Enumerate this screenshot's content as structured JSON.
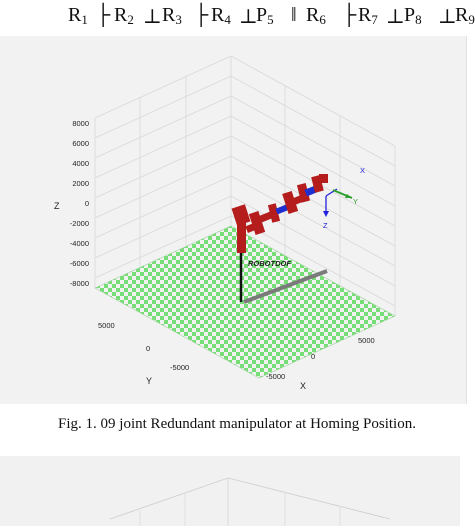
{
  "notation": {
    "r1": "R",
    "r1_sub": "1",
    "joint_a": "├",
    "r2": "R",
    "r2_sub": "2",
    "joint_b": "⊥",
    "r3": "R",
    "r3_sub": "3",
    "joint_c": "├",
    "r4": "R",
    "r4_sub": "4",
    "joint_d": "⊥",
    "p5": "P",
    "p5_sub": "5",
    "joint_e": "‖",
    "r6": "R",
    "r6_sub": "6",
    "joint_f": "├",
    "r7": "R",
    "r7_sub": "7",
    "joint_g": "⊥",
    "p8": "P",
    "p8_sub": "8",
    "joint_h": "⊥",
    "r9": "R",
    "r9_sub": "9"
  },
  "plot": {
    "z_ticks": [
      "8000",
      "6000",
      "4000",
      "2000",
      "0",
      "-2000",
      "-4000",
      "-6000",
      "-8000"
    ],
    "z_label": "Z",
    "y_ticks": [
      "5000",
      "0",
      "-5000"
    ],
    "y_label": "Y",
    "x_ticks": [
      "5000",
      "0",
      "-5000"
    ],
    "x_label": "X",
    "robot_label": "ROBOTDOF",
    "frame_x": "X",
    "frame_y": "Y",
    "frame_z": "Z",
    "colors": {
      "background": "#f2f2f2",
      "floor_a": "#77dd77",
      "floor_b": "#f2f2f2",
      "link_red": "#b51d1d",
      "link_blue": "#1f2fcf",
      "base_pole": "#111111",
      "rail": "#7a7a7a",
      "frame_green": "#2e9e2e",
      "frame_blue": "#2222dd"
    }
  },
  "caption": "Fig. 1.   09 joint Redundant manipulator at Homing Position."
}
